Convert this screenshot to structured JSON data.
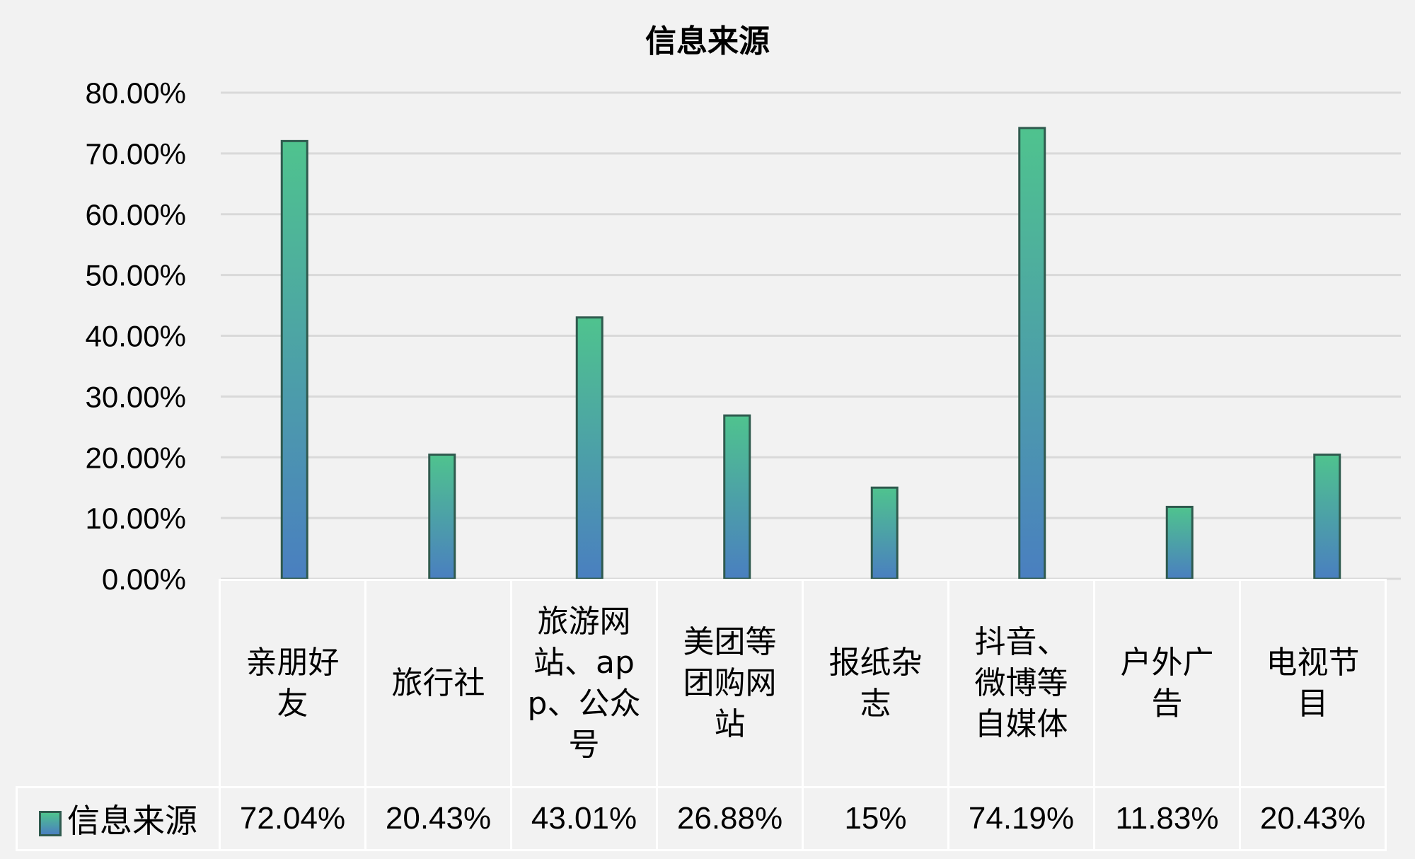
{
  "chart_data": {
    "type": "bar",
    "title": "信息来源",
    "categories": [
      "亲朋好友",
      "旅行社",
      "旅游网站、app、公众号",
      "美团等团购网站",
      "报纸杂志",
      "抖音、微博等自媒体",
      "户外广告",
      "电视节目"
    ],
    "series": [
      {
        "name": "信息来源",
        "values": [
          72.04,
          20.43,
          43.01,
          26.88,
          15,
          74.19,
          11.83,
          20.43
        ]
      }
    ],
    "value_labels": [
      "72.04%",
      "20.43%",
      "43.01%",
      "26.88%",
      "15%",
      "74.19%",
      "11.83%",
      "20.43%"
    ],
    "ylim": [
      0,
      80
    ],
    "yticks": [
      "0.00%",
      "10.00%",
      "20.00%",
      "30.00%",
      "40.00%",
      "50.00%",
      "60.00%",
      "70.00%",
      "80.00%"
    ],
    "grid": true,
    "legend": "data-table-left",
    "colors": {
      "bar_top": "#4fc38e",
      "bar_bottom": "#4a7fc0",
      "bar_border": "#2f5a4e",
      "grid": "#d9d9d9"
    }
  }
}
